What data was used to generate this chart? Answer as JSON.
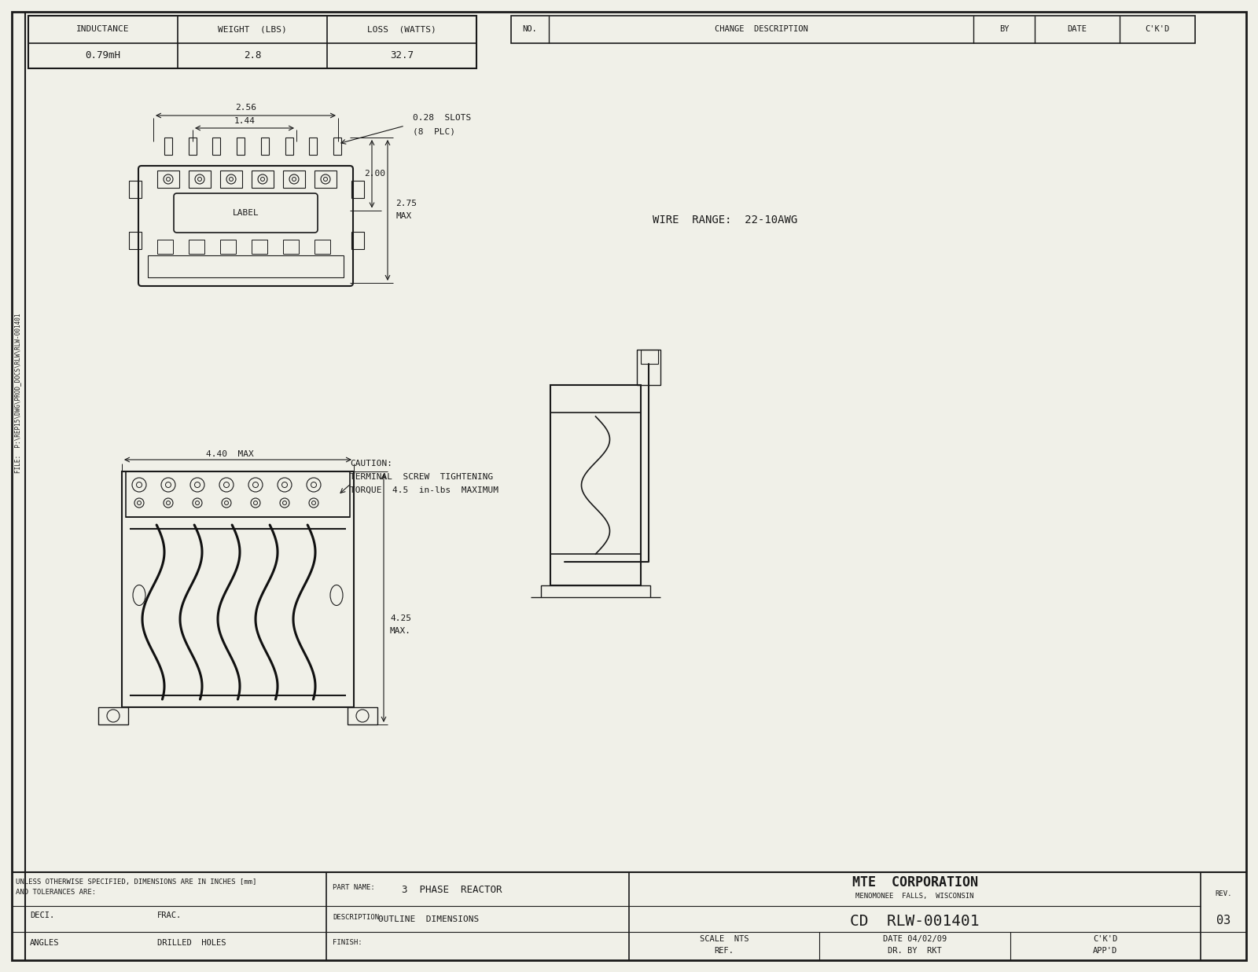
{
  "bg_color": "#f0f0e8",
  "line_color": "#1a1a1a",
  "table_header": {
    "inductance": "INDUCTANCE",
    "weight": "WEIGHT  (LBS)",
    "loss": "LOSS  (WATTS)"
  },
  "table_values": {
    "inductance": "0.79mH",
    "weight": "2.8",
    "loss": "32.7"
  },
  "change_table": {
    "no": "NO.",
    "change_desc": "CHANGE  DESCRIPTION",
    "by": "BY",
    "date": "DATE",
    "ckd": "C'K'D"
  },
  "wire_range": "WIRE  RANGE:  22-10AWG",
  "caution_text": [
    "CAUTION:",
    "TERMINAL  SCREW  TIGHTENING",
    "TORQUE  4.5  in-lbs  MAXIMUM"
  ],
  "dims_top": {
    "d256": "2.56",
    "d144": "1.44",
    "d028_slots": "0.28  SLOTS",
    "plc": "(8  PLC)",
    "d200": "2.00",
    "d275": "2.75",
    "dmax": "MAX"
  },
  "dims_front": {
    "d440_max": "4.40  MAX",
    "d425": "4.25",
    "dmax": "MAX."
  },
  "title_block": {
    "company": "MTE  CORPORATION",
    "location": "MENOMONEE  FALLS,  WISCONSIN",
    "part_name_label": "PART NAME:",
    "part_name": "3  PHASE  REACTOR",
    "description_label": "DESCRIPTION:",
    "description": "OUTLINE  DIMENSIONS",
    "drawing_num": "CD  RLW-001401",
    "rev_label": "REV.",
    "rev": "03",
    "scale_label": "SCALE",
    "scale": "NTS",
    "date_label": "DATE 04/02/09",
    "ckd_label": "C'K'D",
    "ref_label": "REF.",
    "dr_by_label": "DR. BY",
    "dr_by": "RKT",
    "appd_label": "APP'D",
    "finish_label": "FINISH:"
  },
  "tolerances": {
    "line1": "UNLESS OTHERWISE SPECIFIED, DIMENSIONS ARE IN INCHES [mm]",
    "line2": "AND TOLERANCES ARE:",
    "deci_label": "DECI.",
    "frac_label": "FRAC.",
    "angles_label": "ANGLES",
    "drilled_label": "DRILLED  HOLES"
  },
  "file_path": "FILE:  P:\\REP15\\DWG\\PROD_DOCS\\RLW\\RLW-001401",
  "label_text": "LABEL"
}
